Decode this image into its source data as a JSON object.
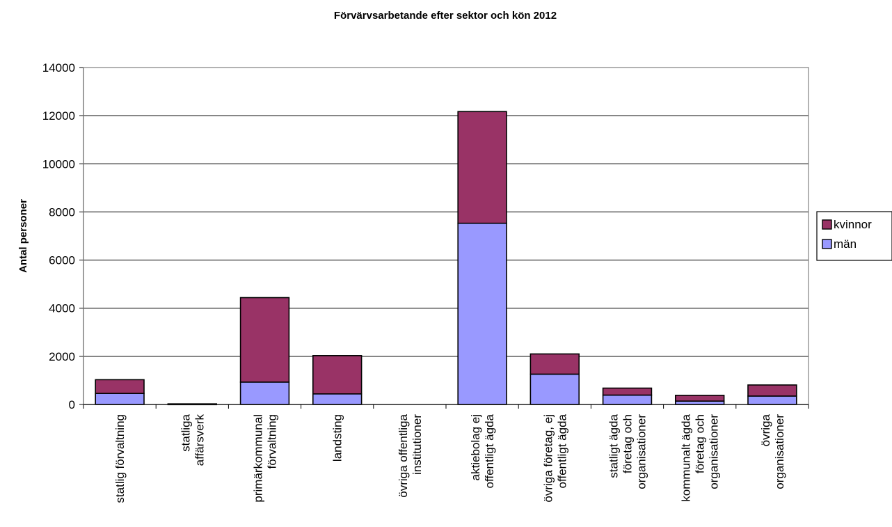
{
  "chart_data": {
    "type": "bar",
    "stacked": true,
    "title": "Förvärvsarbetande efter sektor och kön 2012",
    "xlabel": "",
    "ylabel": "Antal personer",
    "ylim": [
      0,
      14000
    ],
    "yticks": [
      0,
      2000,
      4000,
      6000,
      8000,
      10000,
      12000,
      14000
    ],
    "grid": true,
    "legend_position": "right",
    "categories": [
      [
        "statlig förvaltning"
      ],
      [
        "statliga",
        "affärsverk"
      ],
      [
        "primärkommunal",
        "förvaltning"
      ],
      [
        "landsting"
      ],
      [
        "övriga offentliga",
        "institutioner"
      ],
      [
        "aktiebolag ej",
        "offentligt ägda"
      ],
      [
        "övriga företag, ej",
        "offentligt ägda"
      ],
      [
        "statligt ägda",
        "företag och",
        "organisationer"
      ],
      [
        "kommunalt ägda",
        "företag och",
        "organisationer"
      ],
      [
        "övriga",
        "organisationer"
      ]
    ],
    "series": [
      {
        "name": "män",
        "color": "#9999ff",
        "values": [
          460,
          15,
          930,
          440,
          0,
          7530,
          1260,
          390,
          140,
          350
        ]
      },
      {
        "name": "kvinnor",
        "color": "#993366",
        "values": [
          570,
          10,
          3510,
          1590,
          0,
          4640,
          840,
          290,
          240,
          460
        ]
      }
    ],
    "legend": [
      {
        "name": "kvinnor",
        "color": "#993366"
      },
      {
        "name": "män",
        "color": "#9999ff"
      }
    ]
  }
}
